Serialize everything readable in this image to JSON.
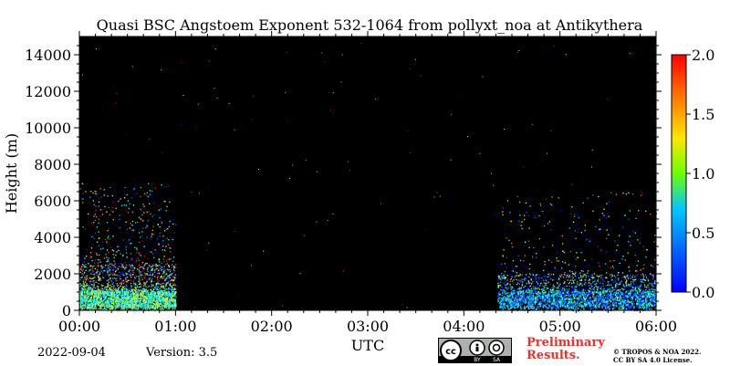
{
  "chart_data": {
    "type": "heatmap",
    "title": "Quasi BSC Angstoem Exponent 532-1064 from pollyxt_noa at Antikythera",
    "xlabel": "UTC",
    "ylabel": "Height (m)",
    "x_ticks": [
      "00:00",
      "01:00",
      "02:00",
      "03:00",
      "04:00",
      "05:00",
      "06:00"
    ],
    "y_ticks": [
      "0",
      "2000",
      "4000",
      "6000",
      "8000",
      "10000",
      "12000",
      "14000"
    ],
    "xlim_hours": [
      0,
      6
    ],
    "ylim": [
      0,
      15000
    ],
    "colorbar": {
      "min": 0.0,
      "max": 2.0,
      "ticks": [
        "0.0",
        "0.5",
        "1.0",
        "1.5",
        "2.0"
      ],
      "colormap": "jet"
    },
    "background_color": "#000000",
    "data_segments": [
      {
        "start_hour": 0.0,
        "end_hour": 1.0,
        "dense_top_m": 2500,
        "sparse_top_m": 7000,
        "dominant_value": 0.9
      },
      {
        "start_hour": 4.35,
        "end_hour": 6.0,
        "dense_top_m": 2000,
        "sparse_top_m": 6500,
        "dominant_value": 0.6
      }
    ]
  },
  "footer": {
    "date": "2022-09-04",
    "version": "Version: 3.5",
    "license_badge": {
      "cc": "cc",
      "by": "BY",
      "sa": "SA"
    },
    "preliminary_line1": "Preliminary",
    "preliminary_line2": "Results.",
    "copyright_line1": "© TROPOS & NOA 2022.",
    "copyright_line2": "CC BY SA 4.0 License."
  }
}
